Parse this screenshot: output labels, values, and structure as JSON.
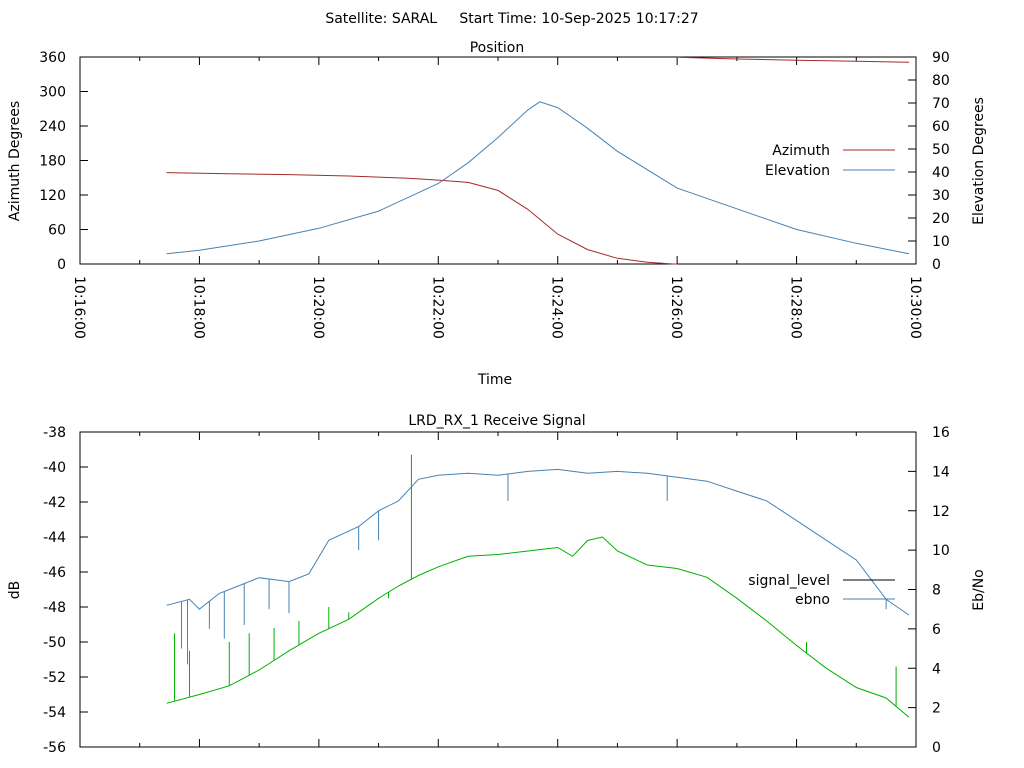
{
  "page": {
    "title": "Satellite: SARAL     Start Time: 10-Sep-2025 10:17:27"
  },
  "chart_data": [
    {
      "type": "line",
      "title": "Position",
      "xlabel": "Time",
      "ylabel": "Azimuth Degrees",
      "y2label": "Elevation Degrees",
      "xlim": [
        "10:16:00",
        "10:30:00"
      ],
      "xticks": [
        "10:16:00",
        "10:18:00",
        "10:20:00",
        "10:22:00",
        "10:24:00",
        "10:26:00",
        "10:28:00",
        "10:30:00"
      ],
      "ylim": [
        0,
        360
      ],
      "yticks": [
        0,
        60,
        120,
        180,
        240,
        300,
        360
      ],
      "y2lim": [
        0,
        90
      ],
      "y2ticks": [
        0,
        10,
        20,
        30,
        40,
        50,
        60,
        70,
        80,
        90
      ],
      "legend_position": "right",
      "series": [
        {
          "name": "Azimuth",
          "axis": "left",
          "color": "#a52a2a",
          "points": [
            [
              "10:17:27",
              159
            ],
            [
              "10:18:30",
              157
            ],
            [
              "10:19:30",
              155.5
            ],
            [
              "10:20:30",
              153
            ],
            [
              "10:21:30",
              149
            ],
            [
              "10:22:00",
              146
            ],
            [
              "10:22:30",
              142
            ],
            [
              "10:23:00",
              128
            ],
            [
              "10:23:30",
              95
            ],
            [
              "10:24:00",
              52
            ],
            [
              "10:24:30",
              25
            ],
            [
              "10:25:00",
              10
            ],
            [
              "10:25:30",
              3
            ],
            [
              "10:25:56",
              0
            ],
            [
              "10:26:00",
              359.5
            ],
            [
              "10:27:00",
              356.5
            ],
            [
              "10:28:00",
              354.5
            ],
            [
              "10:29:00",
              352.5
            ],
            [
              "10:29:53",
              351
            ]
          ]
        },
        {
          "name": "Elevation",
          "axis": "right",
          "color": "#4682b4",
          "points": [
            [
              "10:17:27",
              4.5
            ],
            [
              "10:18:00",
              6
            ],
            [
              "10:19:00",
              10
            ],
            [
              "10:20:00",
              15.5
            ],
            [
              "10:21:00",
              23
            ],
            [
              "10:22:00",
              35
            ],
            [
              "10:22:30",
              44
            ],
            [
              "10:23:00",
              55
            ],
            [
              "10:23:30",
              67
            ],
            [
              "10:23:42",
              70.5
            ],
            [
              "10:24:00",
              68
            ],
            [
              "10:24:30",
              59
            ],
            [
              "10:25:00",
              49
            ],
            [
              "10:26:00",
              33
            ],
            [
              "10:27:00",
              24
            ],
            [
              "10:28:00",
              15
            ],
            [
              "10:29:00",
              9
            ],
            [
              "10:29:53",
              4.5
            ]
          ]
        }
      ]
    },
    {
      "type": "line",
      "title": "LRD_RX_1 Receive Signal",
      "xlabel": "",
      "ylabel": "dB",
      "y2label": "Eb/No",
      "xlim": [
        "10:16:00",
        "10:30:00"
      ],
      "ylim": [
        -56,
        -38
      ],
      "yticks": [
        -56,
        -54,
        -52,
        -50,
        -48,
        -46,
        -44,
        -42,
        -40,
        -38
      ],
      "y2lim": [
        0,
        16
      ],
      "y2ticks": [
        0,
        2,
        4,
        6,
        8,
        10,
        12,
        14,
        16
      ],
      "legend_position": "right",
      "series": [
        {
          "name": "signal_level",
          "axis": "left",
          "color": "#00b000",
          "points": [
            [
              "10:17:27",
              -53.5
            ],
            [
              "10:18:00",
              -53
            ],
            [
              "10:18:30",
              -52.5
            ],
            [
              "10:19:00",
              -51.6
            ],
            [
              "10:19:30",
              -50.5
            ],
            [
              "10:20:00",
              -49.5
            ],
            [
              "10:20:30",
              -48.7
            ],
            [
              "10:21:00",
              -47.5
            ],
            [
              "10:21:20",
              -46.8
            ],
            [
              "10:21:40",
              -46.2
            ],
            [
              "10:22:00",
              -45.7
            ],
            [
              "10:22:30",
              -45.1
            ],
            [
              "10:23:00",
              -45.0
            ],
            [
              "10:23:30",
              -44.8
            ],
            [
              "10:24:00",
              -44.6
            ],
            [
              "10:24:15",
              -45.1
            ],
            [
              "10:24:30",
              -44.2
            ],
            [
              "10:24:45",
              -44.0
            ],
            [
              "10:25:00",
              -44.8
            ],
            [
              "10:25:30",
              -45.6
            ],
            [
              "10:26:00",
              -45.8
            ],
            [
              "10:26:30",
              -46.3
            ],
            [
              "10:27:00",
              -47.5
            ],
            [
              "10:27:30",
              -48.8
            ],
            [
              "10:28:00",
              -50.2
            ],
            [
              "10:28:30",
              -51.5
            ],
            [
              "10:29:00",
              -52.6
            ],
            [
              "10:29:30",
              -53.2
            ],
            [
              "10:29:53",
              -54.3
            ]
          ],
          "spikes": [
            [
              "10:17:35",
              -49.5
            ],
            [
              "10:17:50",
              -50.5
            ],
            [
              "10:18:30",
              -50.0
            ],
            [
              "10:18:50",
              -49.5
            ],
            [
              "10:19:15",
              -49.2
            ],
            [
              "10:19:40",
              -48.8
            ],
            [
              "10:20:10",
              -48.0
            ],
            [
              "10:20:30",
              -48.3
            ],
            [
              "10:21:10",
              -47.5
            ],
            [
              "10:21:33",
              -39.3
            ],
            [
              "10:28:10",
              -50.0
            ],
            [
              "10:29:40",
              -51.4
            ]
          ]
        },
        {
          "name": "ebno",
          "axis": "right",
          "color": "#4682b4",
          "points": [
            [
              "10:17:27",
              7.2
            ],
            [
              "10:17:50",
              7.5
            ],
            [
              "10:18:00",
              7.0
            ],
            [
              "10:18:20",
              7.8
            ],
            [
              "10:18:40",
              8.2
            ],
            [
              "10:19:00",
              8.6
            ],
            [
              "10:19:30",
              8.4
            ],
            [
              "10:19:50",
              8.8
            ],
            [
              "10:20:10",
              10.5
            ],
            [
              "10:20:40",
              11.2
            ],
            [
              "10:21:00",
              12.0
            ],
            [
              "10:21:20",
              12.5
            ],
            [
              "10:21:40",
              13.6
            ],
            [
              "10:22:00",
              13.8
            ],
            [
              "10:22:30",
              13.9
            ],
            [
              "10:23:00",
              13.8
            ],
            [
              "10:23:30",
              14.0
            ],
            [
              "10:24:00",
              14.1
            ],
            [
              "10:24:30",
              13.9
            ],
            [
              "10:25:00",
              14.0
            ],
            [
              "10:25:30",
              13.9
            ],
            [
              "10:26:00",
              13.7
            ],
            [
              "10:26:30",
              13.5
            ],
            [
              "10:27:00",
              13.0
            ],
            [
              "10:27:30",
              12.5
            ],
            [
              "10:28:00",
              11.5
            ],
            [
              "10:28:30",
              10.5
            ],
            [
              "10:29:00",
              9.5
            ],
            [
              "10:29:30",
              7.5
            ],
            [
              "10:29:53",
              6.7
            ]
          ],
          "dips": [
            [
              "10:17:42",
              5.0
            ],
            [
              "10:17:48",
              4.2
            ],
            [
              "10:18:10",
              6.0
            ],
            [
              "10:18:25",
              5.5
            ],
            [
              "10:18:45",
              6.2
            ],
            [
              "10:19:10",
              7.0
            ],
            [
              "10:19:30",
              6.8
            ],
            [
              "10:20:40",
              10.0
            ],
            [
              "10:21:00",
              10.5
            ],
            [
              "10:23:10",
              12.5
            ],
            [
              "10:25:50",
              12.5
            ],
            [
              "10:29:30",
              7.0
            ]
          ]
        }
      ]
    }
  ]
}
